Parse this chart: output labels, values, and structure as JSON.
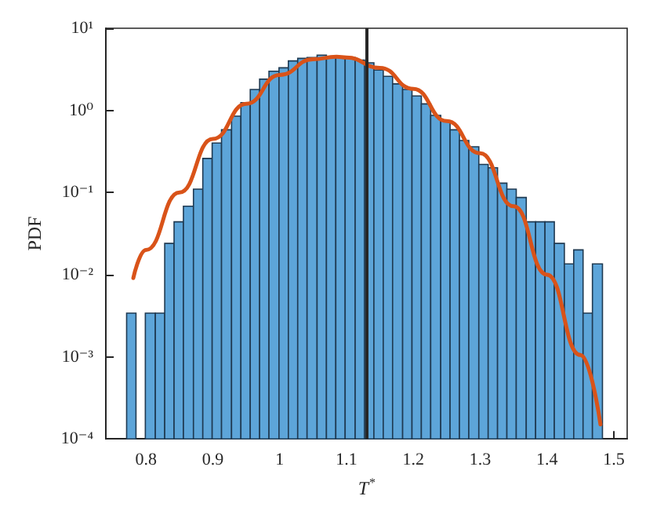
{
  "chart_data": {
    "type": "histogram",
    "xlabel": "T$^{*}$",
    "ylabel": "PDF",
    "log": "y",
    "grid": false,
    "legend": false,
    "xlim": [
      0.74,
      1.52
    ],
    "xticks": [
      0.8,
      0.9,
      1,
      1.1,
      1.2,
      1.3,
      1.4,
      1.5
    ],
    "ylim": [
      0.0001,
      10
    ],
    "yticks": [
      {
        "value": 0.0001,
        "label": "10⁻⁴"
      },
      {
        "value": 0.001,
        "label": "10⁻³"
      },
      {
        "value": 0.01,
        "label": "10⁻²"
      },
      {
        "value": 0.1,
        "label": "10⁻¹"
      },
      {
        "value": 1,
        "label": "10⁰"
      },
      {
        "value": 10,
        "label": "10¹"
      }
    ],
    "ref_lines": [
      {
        "axis": "x",
        "value": 1.13,
        "color": "#262626"
      }
    ],
    "series": [
      {
        "type": "histogram",
        "color": "#5da5d9",
        "bins": [
          0.771,
          0.785,
          0.799,
          0.814,
          0.828,
          0.842,
          0.856,
          0.871,
          0.885,
          0.899,
          0.913,
          0.928,
          0.942,
          0.956,
          0.97,
          0.984,
          0.999,
          1.013,
          1.027,
          1.041,
          1.056,
          1.07,
          1.084,
          1.098,
          1.113,
          1.127,
          1.141,
          1.155,
          1.169,
          1.184,
          1.198,
          1.212,
          1.226,
          1.241,
          1.255,
          1.269,
          1.283,
          1.298,
          1.312,
          1.326,
          1.34,
          1.354,
          1.369,
          1.383,
          1.397,
          1.411,
          1.426,
          1.44,
          1.454,
          1.468,
          1.483
        ],
        "values": [
          0.0034,
          null,
          0.0034,
          0.0034,
          0.024,
          0.044,
          0.068,
          0.11,
          0.26,
          0.4,
          0.58,
          0.85,
          1.24,
          1.8,
          2.4,
          3.0,
          3.3,
          4.0,
          4.3,
          4.4,
          4.7,
          4.5,
          4.5,
          4.4,
          4.1,
          3.8,
          3.1,
          2.6,
          2.1,
          1.8,
          1.5,
          1.2,
          0.87,
          0.74,
          0.58,
          0.43,
          0.36,
          0.22,
          0.2,
          0.13,
          0.11,
          0.087,
          0.044,
          0.044,
          0.044,
          0.024,
          0.0135,
          0.02,
          0.0034,
          0.0135
        ]
      },
      {
        "type": "line",
        "color": "#d95319",
        "x": [
          0.781,
          0.8,
          0.85,
          0.9,
          0.95,
          1.0,
          1.05,
          1.085,
          1.1,
          1.15,
          1.2,
          1.25,
          1.3,
          1.35,
          1.4,
          1.45,
          1.48
        ],
        "values": [
          0.0091,
          0.02,
          0.1,
          0.45,
          1.2,
          2.7,
          4.2,
          4.5,
          4.4,
          3.3,
          1.83,
          0.74,
          0.3,
          0.068,
          0.01,
          0.00105,
          0.00015
        ]
      }
    ]
  }
}
